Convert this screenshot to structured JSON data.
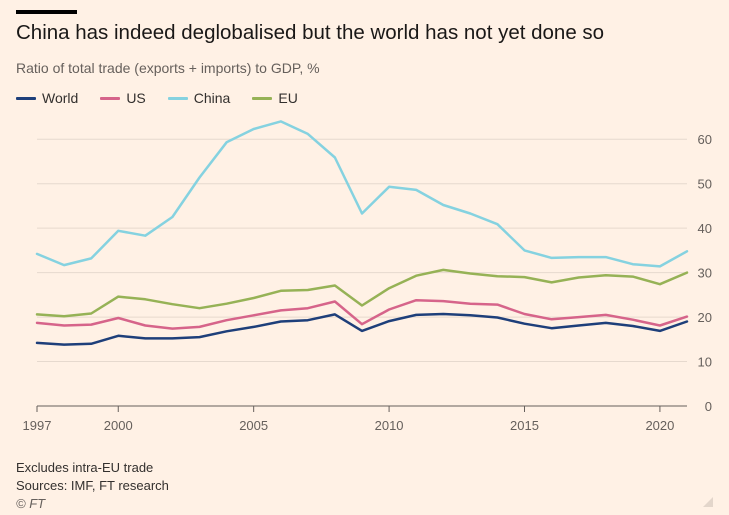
{
  "title": "China has indeed deglobalised but the world has not yet done so",
  "subtitle": "Ratio of total trade (exports + imports) to GDP, %",
  "footnote": "Excludes intra-EU trade",
  "sources": "Sources: IMF, FT research",
  "credit": "© FT",
  "chart_data": {
    "type": "line",
    "x": [
      1997,
      1998,
      1999,
      2000,
      2001,
      2002,
      2003,
      2004,
      2005,
      2006,
      2007,
      2008,
      2009,
      2010,
      2011,
      2012,
      2013,
      2014,
      2015,
      2016,
      2017,
      2018,
      2019,
      2020,
      2021
    ],
    "xlim": [
      1997,
      2021
    ],
    "ylim": [
      0,
      65
    ],
    "y_ticks": [
      0,
      10,
      20,
      30,
      40,
      50,
      60
    ],
    "x_ticks": [
      1997,
      2000,
      2005,
      2010,
      2015,
      2020
    ],
    "grid": true,
    "y_axis_position": "right",
    "legend_position": "top-left",
    "series": [
      {
        "name": "World",
        "color": "#1E3F7A",
        "values": [
          14.2,
          13.8,
          14.0,
          15.8,
          15.2,
          15.2,
          15.5,
          16.8,
          17.8,
          19.0,
          19.3,
          20.6,
          16.9,
          19.1,
          20.5,
          20.7,
          20.4,
          19.9,
          18.5,
          17.5,
          18.1,
          18.7,
          18.0,
          16.9,
          19.0
        ]
      },
      {
        "name": "US",
        "color": "#D6648A",
        "values": [
          18.7,
          18.1,
          18.3,
          19.8,
          18.1,
          17.4,
          17.8,
          19.3,
          20.4,
          21.5,
          22.0,
          23.5,
          18.4,
          21.7,
          23.8,
          23.6,
          23.0,
          22.8,
          20.7,
          19.5,
          20.0,
          20.5,
          19.4,
          18.1,
          20.1
        ]
      },
      {
        "name": "China",
        "color": "#85D2E0",
        "values": [
          34.2,
          31.7,
          33.2,
          39.4,
          38.3,
          42.5,
          51.4,
          59.3,
          62.3,
          64.0,
          61.2,
          55.9,
          43.3,
          49.3,
          48.6,
          45.2,
          43.3,
          40.9,
          35.0,
          33.3,
          33.5,
          33.5,
          31.9,
          31.4,
          34.8
        ]
      },
      {
        "name": "EU",
        "color": "#96B256",
        "values": [
          20.6,
          20.2,
          20.8,
          24.6,
          24.0,
          22.9,
          22.0,
          23.0,
          24.3,
          25.9,
          26.1,
          27.1,
          22.6,
          26.5,
          29.3,
          30.6,
          29.8,
          29.2,
          29.0,
          27.8,
          28.9,
          29.4,
          29.1,
          27.4,
          30.0
        ]
      }
    ]
  }
}
